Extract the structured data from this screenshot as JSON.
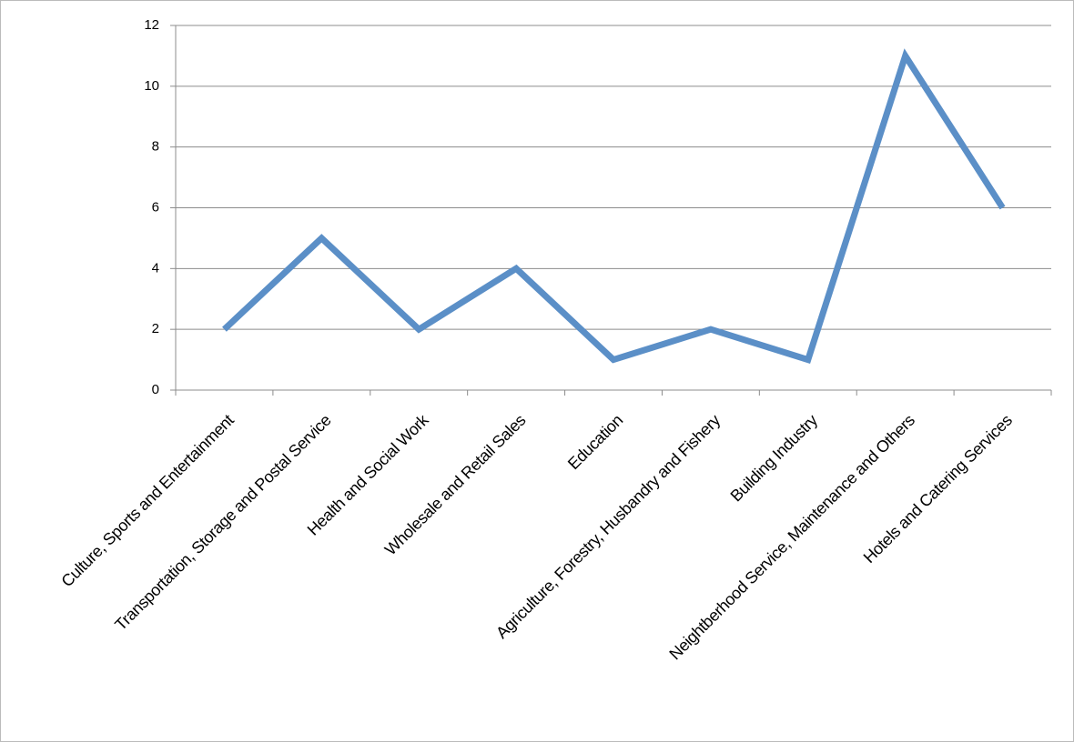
{
  "chart_data": {
    "type": "line",
    "categories": [
      "Culture, Sports and Entertainment",
      "Transportation, Storage and Postal Service",
      "Health and Social Work",
      "Wholesale and Retail Sales",
      "Education",
      "Agriculture, Forestry, Husbandry and Fishery",
      "Building Industry",
      "Neightberhood Service, Maintenance and Others",
      "Hotels and Catering Services"
    ],
    "values": [
      2,
      5,
      2,
      4,
      1,
      2,
      1,
      11,
      6
    ],
    "color": "#5b8fc7",
    "ylim": [
      0,
      12
    ],
    "yticks": [
      0,
      2,
      4,
      6,
      8,
      10,
      12
    ],
    "grid": true
  }
}
